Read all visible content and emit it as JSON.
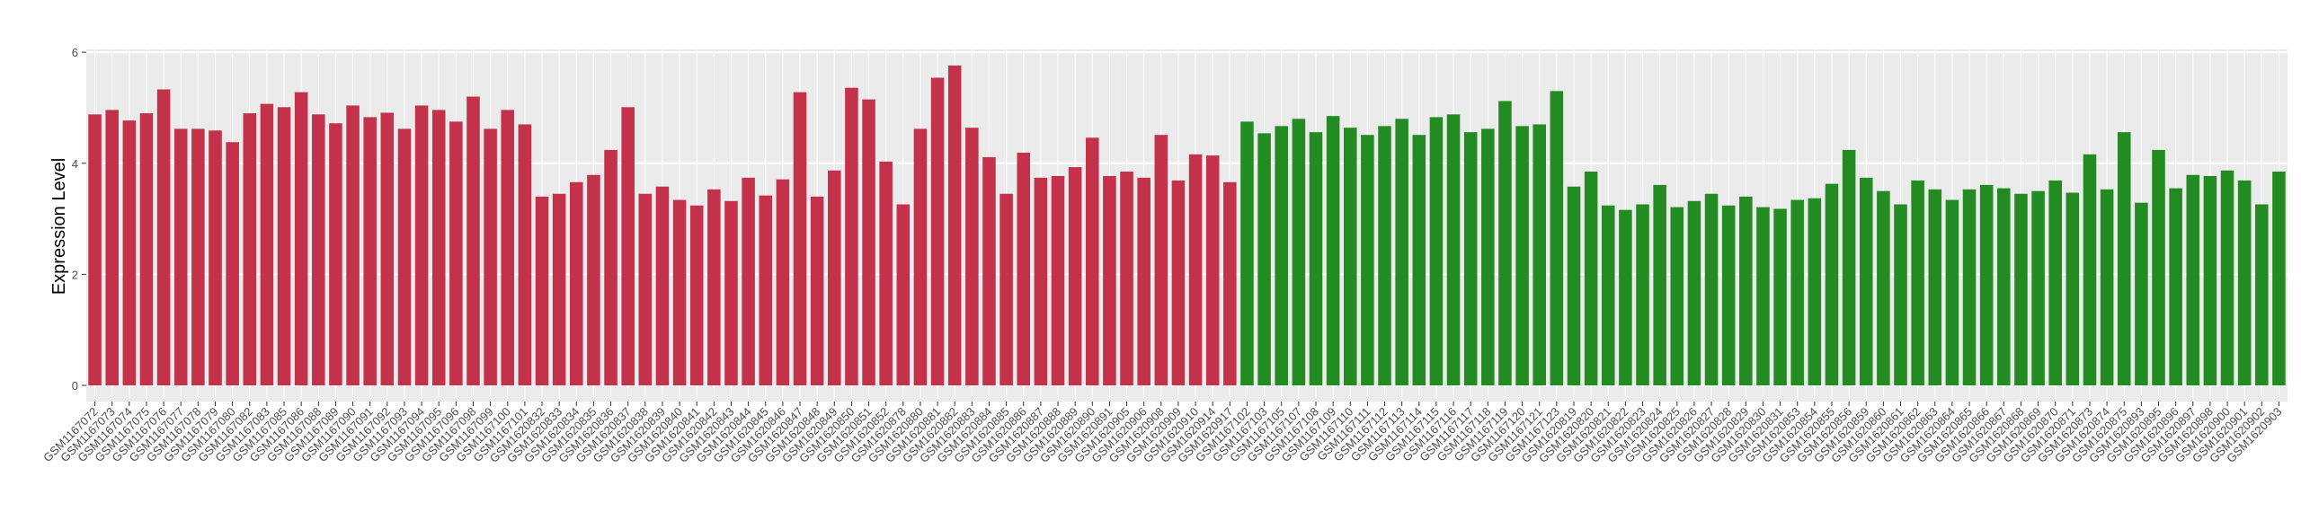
{
  "chart_data": {
    "type": "bar",
    "ylabel": "Expression Level",
    "ylim": [
      -0.29,
      6.05
    ],
    "yticks": [
      0,
      2,
      4,
      6
    ],
    "grid": true,
    "series": [
      {
        "color": "#c4314b",
        "categories": [
          "GSM1167072",
          "GSM1167073",
          "GSM1167074",
          "GSM1167075",
          "GSM1167076",
          "GSM1167077",
          "GSM1167078",
          "GSM1167079",
          "GSM1167080",
          "GSM1167082",
          "GSM1167083",
          "GSM1167085",
          "GSM1167086",
          "GSM1167088",
          "GSM1167089",
          "GSM1167090",
          "GSM1167091",
          "GSM1167092",
          "GSM1167093",
          "GSM1167094",
          "GSM1167095",
          "GSM1167096",
          "GSM1167098",
          "GSM1167099",
          "GSM1167100",
          "GSM1167101",
          "GSM1620832",
          "GSM1620833",
          "GSM1620834",
          "GSM1620835",
          "GSM1620836",
          "GSM1620837",
          "GSM1620838",
          "GSM1620839",
          "GSM1620840",
          "GSM1620841",
          "GSM1620842",
          "GSM1620843",
          "GSM1620844",
          "GSM1620845",
          "GSM1620846",
          "GSM1620847",
          "GSM1620848",
          "GSM1620849",
          "GSM1620850",
          "GSM1620851",
          "GSM1620852",
          "GSM1620878",
          "GSM1620880",
          "GSM1620881",
          "GSM1620882",
          "GSM1620883",
          "GSM1620884",
          "GSM1620885",
          "GSM1620886",
          "GSM1620887",
          "GSM1620888",
          "GSM1620889",
          "GSM1620890",
          "GSM1620891",
          "GSM1620905",
          "GSM1620906",
          "GSM1620908",
          "GSM1620909",
          "GSM1620910",
          "GSM1620914",
          "GSM1620917"
        ],
        "values": [
          4.88,
          4.96,
          4.77,
          4.9,
          5.33,
          4.62,
          4.62,
          4.59,
          4.38,
          4.9,
          5.07,
          5.01,
          5.28,
          4.88,
          4.72,
          5.04,
          4.83,
          4.91,
          4.62,
          5.04,
          4.96,
          4.75,
          5.2,
          4.62,
          4.96,
          4.7,
          3.4,
          3.45,
          3.66,
          3.79,
          4.24,
          5.01,
          3.45,
          3.58,
          3.34,
          3.24,
          3.53,
          3.32,
          3.74,
          3.42,
          3.71,
          5.28,
          3.4,
          3.87,
          5.36,
          5.15,
          4.03,
          3.26,
          4.62,
          5.54,
          5.76,
          4.64,
          4.11,
          3.45,
          4.19,
          3.74,
          3.77,
          3.93,
          4.46,
          3.77,
          3.85,
          3.74,
          4.51,
          3.69,
          4.16,
          4.14,
          3.66
        ]
      },
      {
        "color": "#228b22",
        "categories": [
          "GSM1167102",
          "GSM1167103",
          "GSM1167105",
          "GSM1167107",
          "GSM1167108",
          "GSM1167109",
          "GSM1167110",
          "GSM1167111",
          "GSM1167112",
          "GSM1167113",
          "GSM1167114",
          "GSM1167115",
          "GSM1167116",
          "GSM1167117",
          "GSM1167118",
          "GSM1167119",
          "GSM1167120",
          "GSM1167121",
          "GSM1167123",
          "GSM1620819",
          "GSM1620820",
          "GSM1620821",
          "GSM1620822",
          "GSM1620823",
          "GSM1620824",
          "GSM1620825",
          "GSM1620826",
          "GSM1620827",
          "GSM1620828",
          "GSM1620829",
          "GSM1620830",
          "GSM1620831",
          "GSM1620853",
          "GSM1620854",
          "GSM1620855",
          "GSM1620856",
          "GSM1620859",
          "GSM1620860",
          "GSM1620861",
          "GSM1620862",
          "GSM1620863",
          "GSM1620864",
          "GSM1620865",
          "GSM1620866",
          "GSM1620867",
          "GSM1620868",
          "GSM1620869",
          "GSM1620870",
          "GSM1620871",
          "GSM1620873",
          "GSM1620874",
          "GSM1620875",
          "GSM1620893",
          "GSM1620895",
          "GSM1620896",
          "GSM1620897",
          "GSM1620898",
          "GSM1620900",
          "GSM1620901",
          "GSM1620902",
          "GSM1620903"
        ],
        "values": [
          4.75,
          4.54,
          4.67,
          4.8,
          4.56,
          4.85,
          4.64,
          4.51,
          4.67,
          4.8,
          4.51,
          4.83,
          4.88,
          4.56,
          4.62,
          5.12,
          4.67,
          4.7,
          5.3,
          3.58,
          3.85,
          3.24,
          3.16,
          3.26,
          3.61,
          3.21,
          3.32,
          3.45,
          3.24,
          3.4,
          3.21,
          3.18,
          3.34,
          3.37,
          3.63,
          4.24,
          3.74,
          3.5,
          3.26,
          3.69,
          3.53,
          3.34,
          3.53,
          3.61,
          3.55,
          3.45,
          3.5,
          3.69,
          3.47,
          4.16,
          3.53,
          4.56,
          3.29,
          4.24,
          3.55,
          3.79,
          3.77,
          3.87,
          3.69,
          3.26,
          3.85
        ]
      }
    ]
  }
}
